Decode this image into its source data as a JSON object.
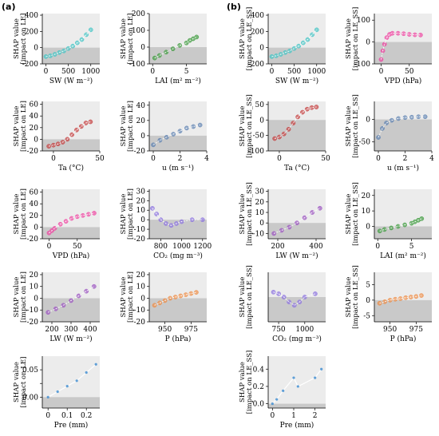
{
  "figure": {
    "panel_labels": [
      "(a)",
      "(b)"
    ]
  },
  "chart_data": [
    {
      "type": "scatter",
      "panel": "a",
      "ylabel": [
        "SHAP value",
        "[impact on LE]"
      ],
      "xlabel": "SW (W m⁻²)",
      "xticks": [
        0,
        500,
        1000
      ],
      "yticks": [
        -200,
        0,
        200,
        400
      ],
      "xlim": [
        -80,
        1200
      ],
      "ylim": [
        -200,
        420
      ],
      "color": "#40c4c4",
      "x": [
        0,
        100,
        200,
        300,
        400,
        500,
        600,
        700,
        800,
        900,
        1000
      ],
      "y": [
        -110,
        -100,
        -82,
        -60,
        -40,
        -10,
        20,
        60,
        100,
        160,
        220
      ]
    },
    {
      "type": "scatter",
      "panel": "a",
      "ylabel": [
        "SHAP value",
        "[impact on LE]"
      ],
      "xlabel": "LAI (m² m⁻²)",
      "xticks": [
        0,
        5
      ],
      "yticks": [
        -100,
        0,
        100,
        200
      ],
      "xlim": [
        -0.5,
        8
      ],
      "ylim": [
        -100,
        200
      ],
      "color": "#3a9a3a",
      "x": [
        0.3,
        1,
        2,
        3,
        4,
        5,
        5.5,
        6,
        6.5
      ],
      "y": [
        -65,
        -50,
        -30,
        -10,
        10,
        25,
        40,
        50,
        60
      ]
    },
    {
      "type": "scatter",
      "panel": "a",
      "ylabel": [
        "SHAP value",
        "[impact on LE]"
      ],
      "xlabel": "Ta (°C)",
      "xticks": [
        0,
        50
      ],
      "yticks": [
        -20,
        0,
        20,
        40,
        60
      ],
      "xlim": [
        -12,
        50
      ],
      "ylim": [
        -20,
        65
      ],
      "color": "#c43a3a",
      "x": [
        -5,
        0,
        5,
        10,
        15,
        20,
        25,
        30,
        35,
        40
      ],
      "y": [
        -12,
        -10,
        -8,
        -5,
        0,
        8,
        16,
        22,
        28,
        30
      ]
    },
    {
      "type": "scatter",
      "panel": "a",
      "ylabel": [
        "SHAP value",
        "[impact on LE]"
      ],
      "xlabel": "u (m s⁻¹)",
      "xticks": [
        0,
        2,
        4
      ],
      "yticks": [
        -20,
        0,
        20,
        40
      ],
      "xlim": [
        -0.3,
        4
      ],
      "ylim": [
        -20,
        45
      ],
      "color": "#5a80b0",
      "x": [
        0,
        0.5,
        1,
        1.5,
        2,
        2.5,
        3,
        3.5
      ],
      "y": [
        -12,
        -6,
        -2,
        2,
        6,
        10,
        12,
        14
      ]
    },
    {
      "type": "scatter",
      "panel": "a",
      "ylabel": [
        "SHAP value",
        "[impact on LE]"
      ],
      "xlabel": "VPD (hPa)",
      "xticks": [
        0,
        50
      ],
      "yticks": [
        -20,
        0,
        20,
        40,
        60
      ],
      "xlim": [
        -12,
        90
      ],
      "ylim": [
        -20,
        65
      ],
      "color": "#f040a0",
      "x": [
        0,
        5,
        10,
        20,
        30,
        40,
        50,
        60,
        70,
        80
      ],
      "y": [
        -10,
        -6,
        -2,
        5,
        10,
        15,
        18,
        20,
        22,
        24
      ]
    },
    {
      "type": "scatter",
      "panel": "a",
      "ylabel": [
        "SHAP value",
        "[impact on LE]"
      ],
      "xlabel": "CO₂ (mg m⁻³)",
      "xticks": [
        800,
        1000,
        1200
      ],
      "yticks": [
        -20,
        -10,
        0,
        10,
        20,
        30
      ],
      "xlim": [
        690,
        1240
      ],
      "ylim": [
        -20,
        32
      ],
      "color": "#8a70e0",
      "x": [
        720,
        760,
        800,
        850,
        900,
        950,
        1000,
        1100,
        1200
      ],
      "y": [
        12,
        6,
        0,
        -4,
        -6,
        -4,
        -2,
        0,
        0
      ]
    },
    {
      "type": "scatter",
      "panel": "a",
      "ylabel": [
        "SHAP value",
        "[impact on LE]"
      ],
      "xlabel": "LW (W m⁻²)",
      "xticks": [
        200,
        300,
        400
      ],
      "yticks": [
        -20,
        -10,
        0,
        10,
        20
      ],
      "xlim": [
        150,
        450
      ],
      "ylim": [
        -20,
        22
      ],
      "color": "#9a50c0",
      "x": [
        180,
        220,
        260,
        300,
        340,
        380,
        420
      ],
      "y": [
        -12,
        -9,
        -6,
        -2,
        2,
        6,
        10
      ]
    },
    {
      "type": "scatter",
      "panel": "a",
      "ylabel": [
        "SHAP value",
        "[impact on LE]"
      ],
      "xlabel": "P (hPa)",
      "xticks": [
        950,
        975
      ],
      "yticks": [
        -20,
        -10,
        0,
        10,
        20
      ],
      "xlim": [
        935,
        990
      ],
      "ylim": [
        -20,
        22
      ],
      "color": "#f08a40",
      "x": [
        940,
        945,
        950,
        955,
        960,
        965,
        970,
        975,
        980
      ],
      "y": [
        -6,
        -4,
        -2,
        0,
        1,
        2,
        3,
        4,
        5
      ]
    },
    {
      "type": "line",
      "panel": "a",
      "ylabel": [
        "SHAP value",
        "[impact on LE]"
      ],
      "xlabel": "Pre (mm)",
      "xticks": [
        0.0,
        0.1,
        0.2
      ],
      "yticks": [
        0.0,
        0.025,
        0.05
      ],
      "ytick_labels": [
        "0.00",
        "",
        "0.05"
      ],
      "xlim": [
        -0.03,
        0.27
      ],
      "ylim": [
        -0.02,
        0.075
      ],
      "color": "#3a8ad0",
      "x": [
        0,
        0.05,
        0.1,
        0.15,
        0.2,
        0.25
      ],
      "y": [
        0.0,
        0.01,
        0.02,
        0.03,
        0.045,
        0.06
      ]
    },
    {
      "type": "scatter",
      "panel": "b",
      "ylabel": [
        "SHAP value",
        "[impact on LE_SS]"
      ],
      "xlabel": "SW (W m⁻²)",
      "xticks": [
        0,
        500,
        1000
      ],
      "yticks": [
        -200,
        0,
        200,
        400
      ],
      "xlim": [
        -80,
        1200
      ],
      "ylim": [
        -200,
        420
      ],
      "color": "#40c4c4",
      "x": [
        0,
        100,
        200,
        300,
        400,
        500,
        600,
        700,
        800,
        900,
        1000
      ],
      "y": [
        -110,
        -100,
        -82,
        -60,
        -40,
        -10,
        20,
        60,
        100,
        160,
        220
      ]
    },
    {
      "type": "scatter",
      "panel": "b",
      "ylabel": [
        "SHAP value",
        "[impact on LE_SS]"
      ],
      "xlabel": "VPD (hPa)",
      "xticks": [
        0,
        50
      ],
      "yticks": [
        -100,
        0,
        100
      ],
      "xlim": [
        -12,
        90
      ],
      "ylim": [
        -100,
        130
      ],
      "color": "#f040a0",
      "x": [
        0,
        3,
        6,
        10,
        15,
        20,
        30,
        40,
        50,
        60,
        70
      ],
      "y": [
        -80,
        -40,
        -10,
        20,
        35,
        40,
        40,
        38,
        35,
        33,
        32
      ]
    },
    {
      "type": "scatter",
      "panel": "b",
      "ylabel": [
        "SHAP value",
        "[impact on LE_SS]"
      ],
      "xlabel": "Ta (°C)",
      "xticks": [
        0,
        50
      ],
      "yticks": [
        -100,
        -50,
        0,
        50
      ],
      "xlim": [
        -12,
        50
      ],
      "ylim": [
        -100,
        60
      ],
      "color": "#c43a3a",
      "x": [
        -5,
        0,
        5,
        10,
        15,
        20,
        25,
        30,
        35,
        40
      ],
      "y": [
        -60,
        -55,
        -45,
        -30,
        -10,
        10,
        25,
        35,
        40,
        42
      ]
    },
    {
      "type": "scatter",
      "panel": "b",
      "ylabel": [
        "SHAP value",
        "[impact on LE_SS]"
      ],
      "xlabel": "u (m s⁻¹)",
      "xticks": [
        0,
        2,
        4
      ],
      "yticks": [
        -50,
        0
      ],
      "xlim": [
        -0.3,
        4
      ],
      "ylim": [
        -70,
        40
      ],
      "color": "#5a80b0",
      "x": [
        0,
        0.3,
        0.6,
        1,
        1.5,
        2,
        2.5,
        3,
        3.5
      ],
      "y": [
        -40,
        -20,
        -8,
        -2,
        2,
        4,
        5,
        6,
        6
      ]
    },
    {
      "type": "scatter",
      "panel": "b",
      "ylabel": [
        "SHAP value",
        "[impact on LE_SS]"
      ],
      "xlabel": "LW (W m⁻²)",
      "xticks": [
        200,
        400
      ],
      "yticks": [
        -10,
        0,
        10,
        20,
        30
      ],
      "xlim": [
        150,
        450
      ],
      "ylim": [
        -15,
        32
      ],
      "color": "#9a50c0",
      "x": [
        180,
        220,
        260,
        300,
        340,
        380,
        420
      ],
      "y": [
        -10,
        -7,
        -4,
        0,
        5,
        10,
        14
      ]
    },
    {
      "type": "scatter",
      "panel": "b",
      "ylabel": [
        "SHAP value",
        "[impact on LE_SS]"
      ],
      "xlabel": "LAI (m² m⁻²)",
      "xticks": [
        0,
        5
      ],
      "yticks": [
        0,
        10,
        20
      ],
      "xlim": [
        -0.5,
        8
      ],
      "ylim": [
        -8,
        24
      ],
      "color": "#3a9a3a",
      "x": [
        0.3,
        1,
        2,
        3,
        4,
        5,
        5.5,
        6,
        6.5
      ],
      "y": [
        -3,
        -2,
        -1,
        0,
        1,
        2,
        3,
        4,
        5
      ]
    },
    {
      "type": "scatter",
      "panel": "b",
      "ylabel": [
        "SHAP value",
        "[impact on LE_SS]"
      ],
      "xlabel": "CO₂ (mg m⁻³)",
      "xticks": [
        750,
        1000
      ],
      "yticks": [],
      "xlim": [
        650,
        1200
      ],
      "ylim": [
        -15,
        15
      ],
      "color": "#8a70e0",
      "x": [
        700,
        750,
        800,
        850,
        900,
        950,
        1000,
        1100
      ],
      "y": [
        3,
        2,
        0,
        -3,
        -5,
        -3,
        0,
        2
      ]
    },
    {
      "type": "scatter",
      "panel": "b",
      "ylabel": [
        "SHAP value",
        "[impact on LE_SS]"
      ],
      "xlabel": "P (hPa)",
      "xticks": [
        950,
        975
      ],
      "yticks": [
        -5,
        0,
        5
      ],
      "xlim": [
        935,
        990
      ],
      "ylim": [
        -7,
        9
      ],
      "color": "#f08a40",
      "x": [
        940,
        945,
        950,
        955,
        960,
        965,
        970,
        975,
        980
      ],
      "y": [
        -1,
        -0.5,
        0,
        0.3,
        0.5,
        0.8,
        1,
        1.2,
        1.5
      ]
    },
    {
      "type": "line",
      "panel": "b",
      "ylabel": [
        "SHAP value",
        "[impact on LE_SS]"
      ],
      "xlabel": "Pre (mm)",
      "xticks": [
        0,
        1,
        2
      ],
      "yticks": [
        0.0,
        0.2,
        0.4
      ],
      "ytick_labels": [
        "0.0",
        "0.2",
        "0.4"
      ],
      "xlim": [
        -0.2,
        2.5
      ],
      "ylim": [
        -0.05,
        0.55
      ],
      "color": "#3a8ad0",
      "x": [
        0,
        0.2,
        0.5,
        1.0,
        1.2,
        2.0,
        2.3
      ],
      "y": [
        0.0,
        0.05,
        0.15,
        0.3,
        0.2,
        0.3,
        0.4
      ]
    }
  ]
}
